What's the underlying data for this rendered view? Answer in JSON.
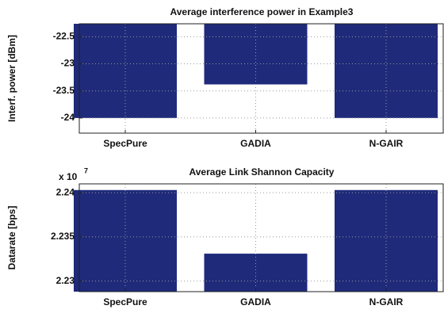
{
  "chart_data": [
    {
      "type": "bar",
      "title": "Average interference power in Example3",
      "ylabel": "Interf. power [dBm]",
      "categories": [
        "SpecPure",
        "GADIA",
        "N-GAIR"
      ],
      "values": [
        -24,
        -23.38,
        -24
      ],
      "color": "#1f2a7a",
      "ylim": [
        -24.28,
        -22.26
      ],
      "yticks": [
        -24,
        -23.5,
        -23,
        -22.5
      ],
      "grid": true
    },
    {
      "type": "bar",
      "title": "Average Link Shannon Capacity",
      "ylabel": "Datarate [bps]",
      "multiplier_base": "x 10",
      "multiplier_exponent": "7",
      "categories": [
        "SpecPure",
        "GADIA",
        "N-GAIR"
      ],
      "values": [
        2.2403,
        2.2331,
        2.2403
      ],
      "color": "#1f2a7a",
      "ylim": [
        2.2288,
        2.241
      ],
      "yticks": [
        2.23,
        2.235,
        2.24
      ],
      "grid": true
    }
  ]
}
